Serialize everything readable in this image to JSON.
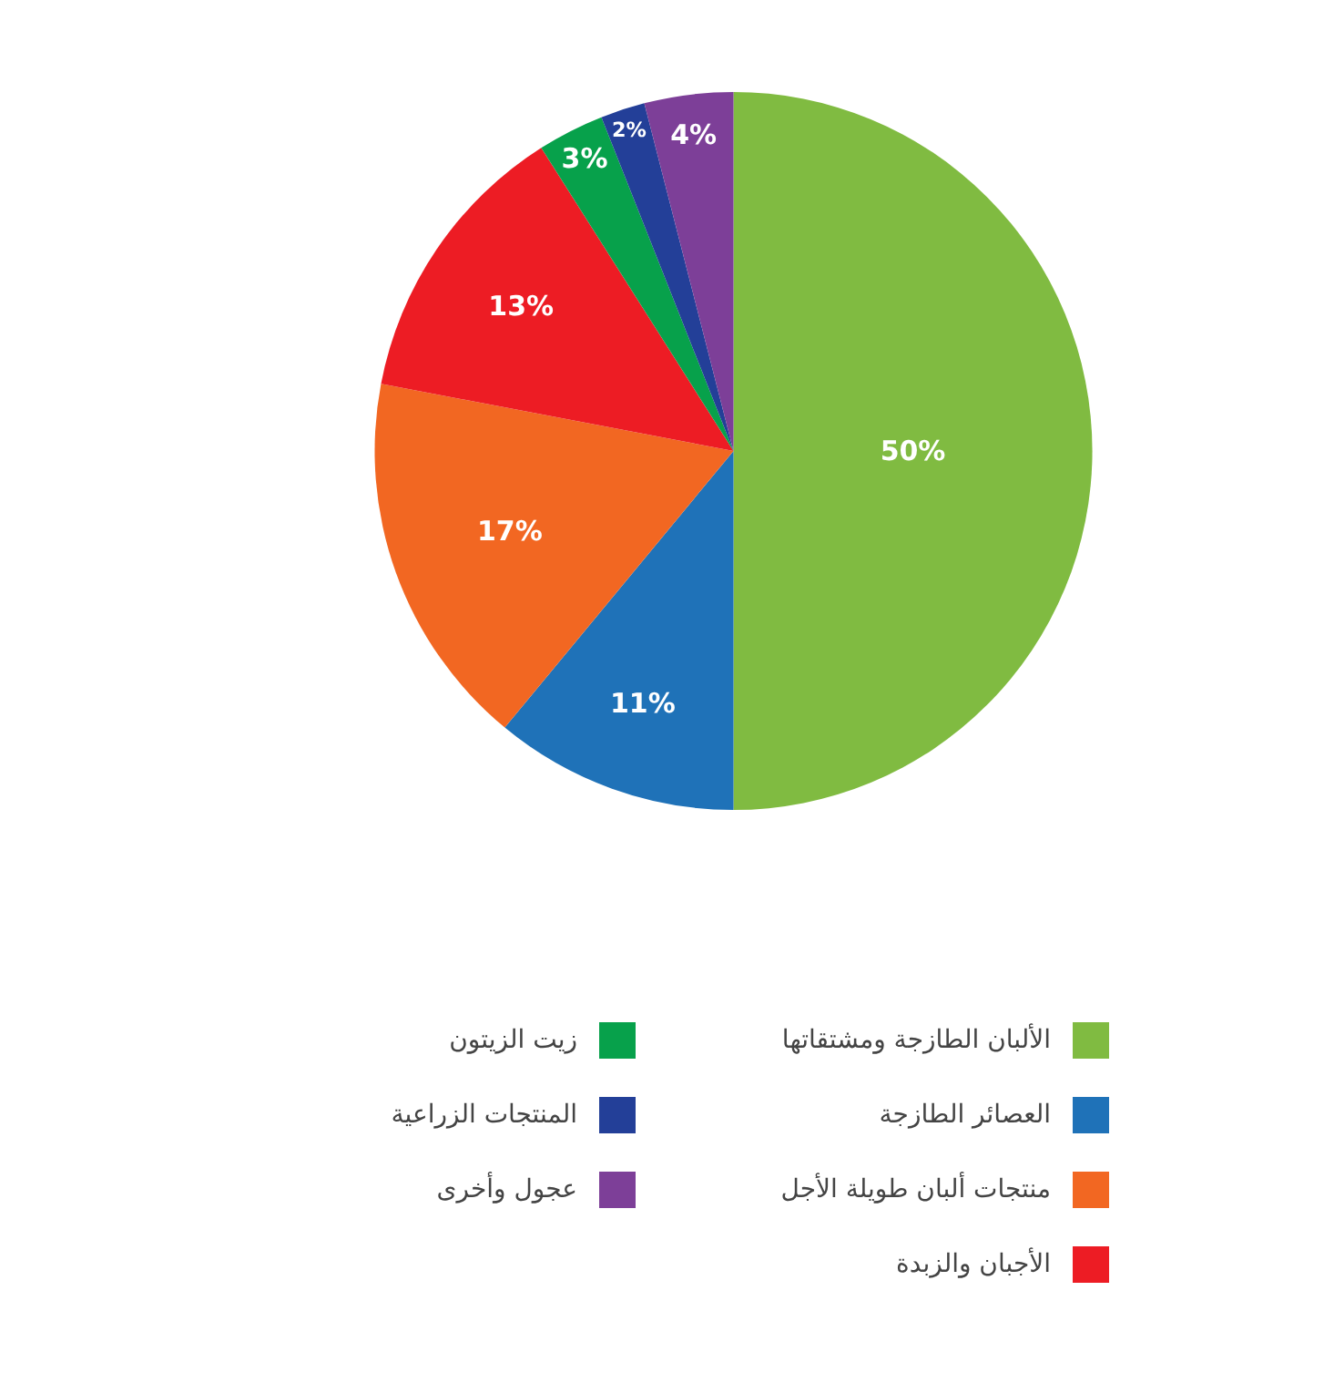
{
  "chart_data": {
    "type": "pie",
    "categories": [
      "الألبان الطازجة ومشتقاتها",
      "العصائر الطازجة",
      "منتجات ألبان طويلة الأجل",
      "الأجبان والزبدة",
      "زيت الزيتون",
      "المنتجات الزراعية",
      "عجول وأخرى"
    ],
    "values": [
      50,
      11,
      17,
      13,
      3,
      2,
      4
    ],
    "colors": [
      "#80bb41",
      "#1f72b8",
      "#f26722",
      "#ed1c24",
      "#07a14b",
      "#233f98",
      "#7d3f98"
    ],
    "value_labels": [
      "50%",
      "11%",
      "17%",
      "13%",
      "3%",
      "2%",
      "4%"
    ],
    "legend": "bottom"
  }
}
